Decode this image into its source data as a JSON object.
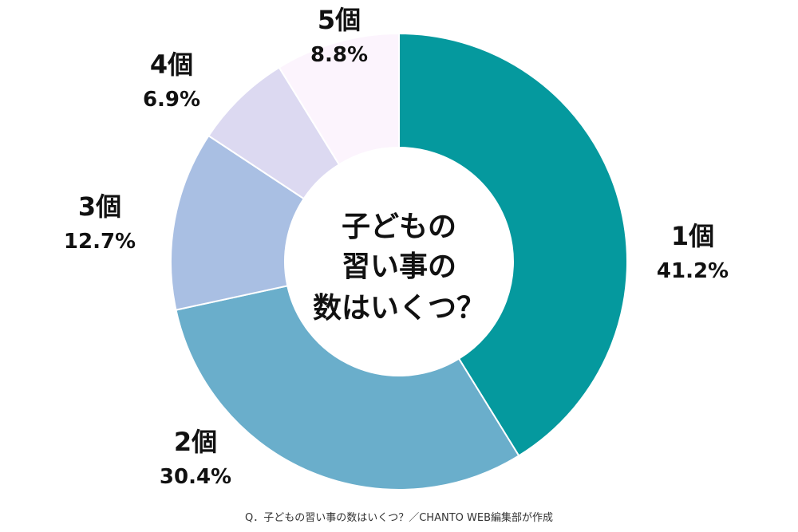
{
  "chart_data": {
    "type": "pie",
    "donut": true,
    "center_title": [
      "子どもの",
      "習い事の",
      "数はいくつ？"
    ],
    "slices": [
      {
        "label": "1個",
        "value_text": "41.2%",
        "value": 41.2,
        "color": "#05999e"
      },
      {
        "label": "2個",
        "value_text": "30.4%",
        "value": 30.4,
        "color": "#6aaecb"
      },
      {
        "label": "3個",
        "value_text": "12.7%",
        "value": 12.7,
        "color": "#a9bfe3"
      },
      {
        "label": "4個",
        "value_text": "6.9%",
        "value": 6.9,
        "color": "#dcd9f1"
      },
      {
        "label": "5個",
        "value_text": "8.8%",
        "value": 8.8,
        "color": "#fcf4fd"
      }
    ]
  },
  "caption": "Q．子どもの習い事の数はいくつ？／CHANTO WEB編集部が作成"
}
